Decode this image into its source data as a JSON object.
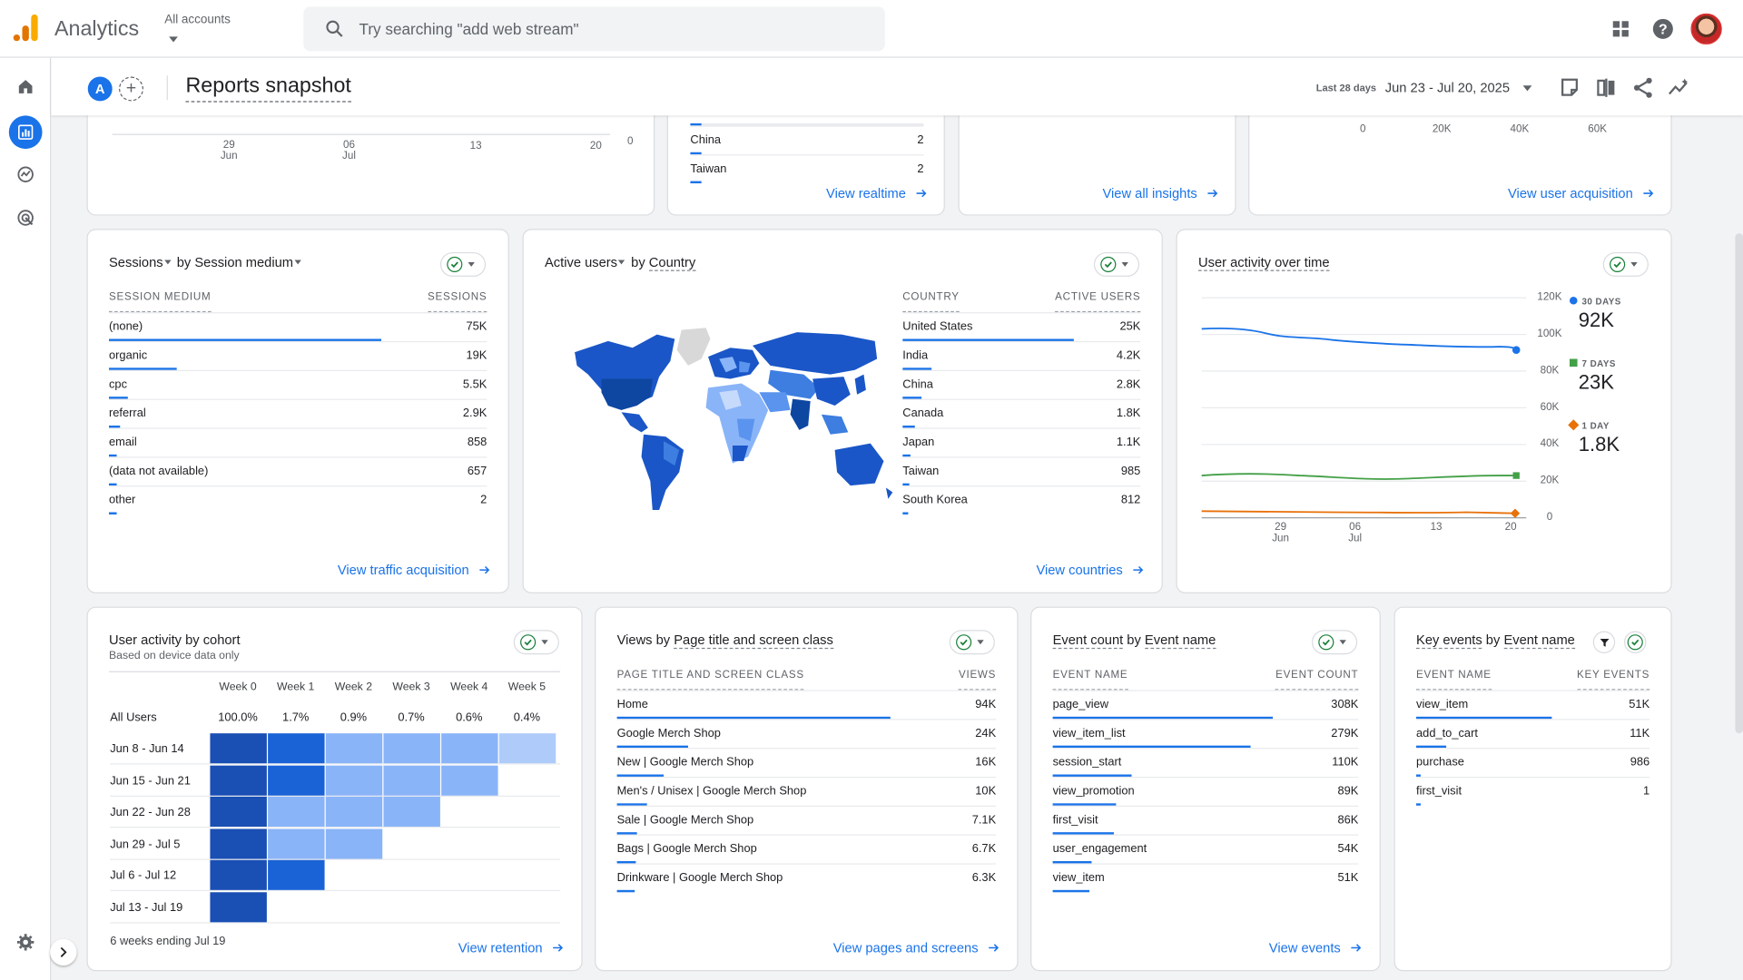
{
  "topbar": {
    "app_title": "Analytics",
    "account_label": "All accounts",
    "search_placeholder": "Try searching \"add web stream\""
  },
  "header": {
    "property_badge": "A",
    "add_comparison": "+",
    "page_title": "Reports snapshot",
    "date_label": "Last 28 days",
    "date_range": "Jun 23 - Jul 20, 2025"
  },
  "top_partial": {
    "realtime_chart_x": [
      "29\nJun",
      "06\nJul",
      "13",
      "20"
    ],
    "realtime_chart_y0": "0",
    "realtime_rows": [
      {
        "label": "China",
        "value": "2"
      },
      {
        "label": "Taiwan",
        "value": "2"
      }
    ],
    "view_realtime": "View realtime",
    "view_insights": "View all insights",
    "acq_ticks": [
      "0",
      "20K",
      "40K",
      "60K"
    ],
    "view_user_acq": "View user acquisition"
  },
  "sessions_card": {
    "metric": "Sessions",
    "by": "by",
    "dimension": "Session medium",
    "col1": "SESSION MEDIUM",
    "col2": "SESSIONS",
    "rows": [
      {
        "label": "(none)",
        "value": "75K",
        "share": 1.0
      },
      {
        "label": "organic",
        "value": "19K",
        "share": 0.25
      },
      {
        "label": "cpc",
        "value": "5.5K",
        "share": 0.07
      },
      {
        "label": "referral",
        "value": "2.9K",
        "share": 0.04
      },
      {
        "label": "email",
        "value": "858",
        "share": 0.012
      },
      {
        "label": "(data not available)",
        "value": "657",
        "share": 0.009
      },
      {
        "label": "other",
        "value": "2",
        "share": 0.002
      }
    ],
    "link": "View traffic acquisition"
  },
  "country_card": {
    "metric": "Active users",
    "by": "by",
    "dimension": "Country",
    "col1": "COUNTRY",
    "col2": "ACTIVE USERS",
    "rows": [
      {
        "label": "United States",
        "value": "25K",
        "share": 1.0
      },
      {
        "label": "India",
        "value": "4.2K",
        "share": 0.17
      },
      {
        "label": "China",
        "value": "2.8K",
        "share": 0.11
      },
      {
        "label": "Canada",
        "value": "1.8K",
        "share": 0.07
      },
      {
        "label": "Japan",
        "value": "1.1K",
        "share": 0.045
      },
      {
        "label": "Taiwan",
        "value": "985",
        "share": 0.04
      },
      {
        "label": "South Korea",
        "value": "812",
        "share": 0.033
      }
    ],
    "link": "View countries"
  },
  "activity_card": {
    "title": "User activity over time",
    "y_ticks": [
      "120K",
      "100K",
      "80K",
      "60K",
      "40K",
      "20K",
      "0"
    ],
    "x_ticks": [
      {
        "d": "29",
        "m": "Jun"
      },
      {
        "d": "06",
        "m": "Jul"
      },
      {
        "d": "13",
        "m": ""
      },
      {
        "d": "20",
        "m": ""
      }
    ],
    "legend": [
      {
        "key": "30 DAYS",
        "value": "92K",
        "color": "#1a73e8"
      },
      {
        "key": "7 DAYS",
        "value": "23K",
        "color": "#43a047"
      },
      {
        "key": "1 DAY",
        "value": "1.8K",
        "color": "#e8710a"
      }
    ]
  },
  "cohort_card": {
    "title": "User activity by cohort",
    "subtitle": "Based on device data only",
    "weeks": [
      "Week 0",
      "Week 1",
      "Week 2",
      "Week 3",
      "Week 4",
      "Week 5"
    ],
    "all_users": {
      "label": "All Users",
      "values": [
        "100.0%",
        "1.7%",
        "0.9%",
        "0.7%",
        "0.6%",
        "0.4%"
      ]
    },
    "rows": [
      {
        "label": "Jun 8 - Jun 14",
        "cells": 6
      },
      {
        "label": "Jun 15 - Jun 21",
        "cells": 5
      },
      {
        "label": "Jun 22 - Jun 28",
        "cells": 4
      },
      {
        "label": "Jun 29 - Jul 5",
        "cells": 3
      },
      {
        "label": "Jul 6 - Jul 12",
        "cells": 2
      },
      {
        "label": "Jul 13 - Jul 19",
        "cells": 1
      }
    ],
    "footer": "6 weeks ending Jul 19",
    "link": "View retention"
  },
  "pages_card": {
    "metric": "Views",
    "by": "by",
    "dimension": "Page title and screen class",
    "col1": "PAGE TITLE AND SCREEN CLASS",
    "col2": "VIEWS",
    "rows": [
      {
        "label": "Home",
        "value": "94K",
        "share": 1.0
      },
      {
        "label": "Google Merch Shop",
        "value": "24K",
        "share": 0.26
      },
      {
        "label": "New | Google Merch Shop",
        "value": "16K",
        "share": 0.17
      },
      {
        "label": "Men's / Unisex | Google Merch Shop",
        "value": "10K",
        "share": 0.11
      },
      {
        "label": "Sale | Google Merch Shop",
        "value": "7.1K",
        "share": 0.075
      },
      {
        "label": "Bags | Google Merch Shop",
        "value": "6.7K",
        "share": 0.07
      },
      {
        "label": "Drinkware | Google Merch Shop",
        "value": "6.3K",
        "share": 0.067
      }
    ],
    "link": "View pages and screens"
  },
  "events_card": {
    "metric": "Event count",
    "by": "by",
    "dimension": "Event name",
    "col1": "EVENT NAME",
    "col2": "EVENT COUNT",
    "rows": [
      {
        "label": "page_view",
        "value": "308K",
        "share": 1.0
      },
      {
        "label": "view_item_list",
        "value": "279K",
        "share": 0.9
      },
      {
        "label": "session_start",
        "value": "110K",
        "share": 0.36
      },
      {
        "label": "view_promotion",
        "value": "89K",
        "share": 0.29
      },
      {
        "label": "first_visit",
        "value": "86K",
        "share": 0.28
      },
      {
        "label": "user_engagement",
        "value": "54K",
        "share": 0.175
      },
      {
        "label": "view_item",
        "value": "51K",
        "share": 0.165
      }
    ],
    "link": "View events"
  },
  "keyevents_card": {
    "metric": "Key events",
    "by": "by",
    "dimension": "Event name",
    "col1": "EVENT NAME",
    "col2": "KEY EVENTS",
    "rows": [
      {
        "label": "view_item",
        "value": "51K",
        "share": 0.81
      },
      {
        "label": "add_to_cart",
        "value": "11K",
        "share": 0.18
      },
      {
        "label": "purchase",
        "value": "986",
        "share": 0.02
      },
      {
        "label": "first_visit",
        "value": "1",
        "share": 0.002
      }
    ]
  }
}
